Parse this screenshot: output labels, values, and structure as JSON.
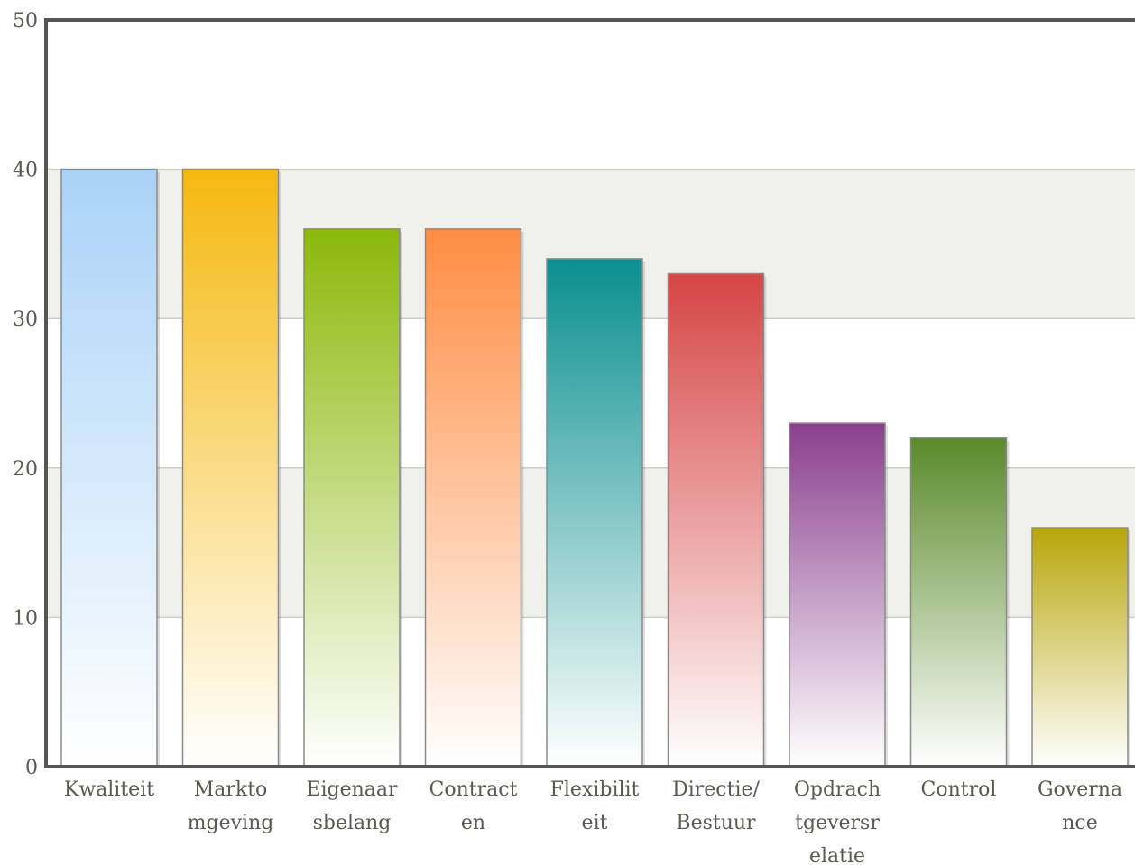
{
  "chart_data": {
    "type": "bar",
    "title": "",
    "xlabel": "",
    "ylabel": "",
    "ylim": [
      0,
      50
    ],
    "yticks": [
      0,
      10,
      20,
      30,
      40,
      50
    ],
    "grid": true,
    "banded_background": true,
    "categories": [
      [
        "Kwaliteit"
      ],
      [
        "Markto",
        "mgeving"
      ],
      [
        "Eigenaar",
        "sbelang"
      ],
      [
        "Contract",
        "en"
      ],
      [
        "Flexibilit",
        "eit"
      ],
      [
        "Directie/",
        "Bestuur"
      ],
      [
        "Opdrach",
        "tgeversr",
        "elatie"
      ],
      [
        "Control"
      ],
      [
        "Governa",
        "nce"
      ]
    ],
    "values": [
      40,
      40,
      36,
      36,
      34,
      33,
      23,
      22,
      16
    ],
    "colors": [
      "#a9d2f7",
      "#f5b80f",
      "#8bb80a",
      "#ff8c42",
      "#0a8f8f",
      "#d64545",
      "#8a3f8e",
      "#5a8a2a",
      "#b8a60a"
    ]
  }
}
